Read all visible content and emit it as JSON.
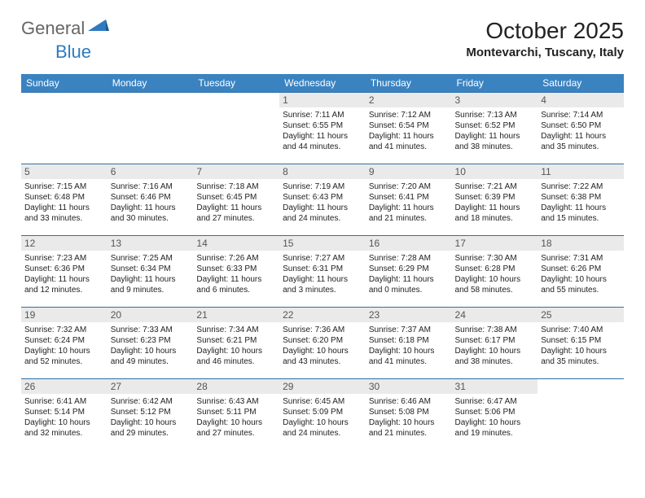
{
  "logo": {
    "part1": "General",
    "part2": "Blue"
  },
  "title": "October 2025",
  "location": "Montevarchi, Tuscany, Italy",
  "colors": {
    "header_bg": "#3b83c0",
    "header_text": "#ffffff",
    "row_border": "#2f6fa8",
    "daynum_bg": "#eaeaea",
    "daynum_text": "#555555",
    "body_text": "#222222",
    "logo_gray": "#666666",
    "logo_blue": "#2f7bbf",
    "page_bg": "#ffffff"
  },
  "typography": {
    "title_fontsize": 28,
    "location_fontsize": 15,
    "dow_fontsize": 12,
    "daynum_fontsize": 12,
    "body_fontsize": 10
  },
  "days_of_week": [
    "Sunday",
    "Monday",
    "Tuesday",
    "Wednesday",
    "Thursday",
    "Friday",
    "Saturday"
  ],
  "weeks": [
    [
      null,
      null,
      null,
      {
        "n": "1",
        "sr": "Sunrise: 7:11 AM",
        "ss": "Sunset: 6:55 PM",
        "d1": "Daylight: 11 hours",
        "d2": "and 44 minutes."
      },
      {
        "n": "2",
        "sr": "Sunrise: 7:12 AM",
        "ss": "Sunset: 6:54 PM",
        "d1": "Daylight: 11 hours",
        "d2": "and 41 minutes."
      },
      {
        "n": "3",
        "sr": "Sunrise: 7:13 AM",
        "ss": "Sunset: 6:52 PM",
        "d1": "Daylight: 11 hours",
        "d2": "and 38 minutes."
      },
      {
        "n": "4",
        "sr": "Sunrise: 7:14 AM",
        "ss": "Sunset: 6:50 PM",
        "d1": "Daylight: 11 hours",
        "d2": "and 35 minutes."
      }
    ],
    [
      {
        "n": "5",
        "sr": "Sunrise: 7:15 AM",
        "ss": "Sunset: 6:48 PM",
        "d1": "Daylight: 11 hours",
        "d2": "and 33 minutes."
      },
      {
        "n": "6",
        "sr": "Sunrise: 7:16 AM",
        "ss": "Sunset: 6:46 PM",
        "d1": "Daylight: 11 hours",
        "d2": "and 30 minutes."
      },
      {
        "n": "7",
        "sr": "Sunrise: 7:18 AM",
        "ss": "Sunset: 6:45 PM",
        "d1": "Daylight: 11 hours",
        "d2": "and 27 minutes."
      },
      {
        "n": "8",
        "sr": "Sunrise: 7:19 AM",
        "ss": "Sunset: 6:43 PM",
        "d1": "Daylight: 11 hours",
        "d2": "and 24 minutes."
      },
      {
        "n": "9",
        "sr": "Sunrise: 7:20 AM",
        "ss": "Sunset: 6:41 PM",
        "d1": "Daylight: 11 hours",
        "d2": "and 21 minutes."
      },
      {
        "n": "10",
        "sr": "Sunrise: 7:21 AM",
        "ss": "Sunset: 6:39 PM",
        "d1": "Daylight: 11 hours",
        "d2": "and 18 minutes."
      },
      {
        "n": "11",
        "sr": "Sunrise: 7:22 AM",
        "ss": "Sunset: 6:38 PM",
        "d1": "Daylight: 11 hours",
        "d2": "and 15 minutes."
      }
    ],
    [
      {
        "n": "12",
        "sr": "Sunrise: 7:23 AM",
        "ss": "Sunset: 6:36 PM",
        "d1": "Daylight: 11 hours",
        "d2": "and 12 minutes."
      },
      {
        "n": "13",
        "sr": "Sunrise: 7:25 AM",
        "ss": "Sunset: 6:34 PM",
        "d1": "Daylight: 11 hours",
        "d2": "and 9 minutes."
      },
      {
        "n": "14",
        "sr": "Sunrise: 7:26 AM",
        "ss": "Sunset: 6:33 PM",
        "d1": "Daylight: 11 hours",
        "d2": "and 6 minutes."
      },
      {
        "n": "15",
        "sr": "Sunrise: 7:27 AM",
        "ss": "Sunset: 6:31 PM",
        "d1": "Daylight: 11 hours",
        "d2": "and 3 minutes."
      },
      {
        "n": "16",
        "sr": "Sunrise: 7:28 AM",
        "ss": "Sunset: 6:29 PM",
        "d1": "Daylight: 11 hours",
        "d2": "and 0 minutes."
      },
      {
        "n": "17",
        "sr": "Sunrise: 7:30 AM",
        "ss": "Sunset: 6:28 PM",
        "d1": "Daylight: 10 hours",
        "d2": "and 58 minutes."
      },
      {
        "n": "18",
        "sr": "Sunrise: 7:31 AM",
        "ss": "Sunset: 6:26 PM",
        "d1": "Daylight: 10 hours",
        "d2": "and 55 minutes."
      }
    ],
    [
      {
        "n": "19",
        "sr": "Sunrise: 7:32 AM",
        "ss": "Sunset: 6:24 PM",
        "d1": "Daylight: 10 hours",
        "d2": "and 52 minutes."
      },
      {
        "n": "20",
        "sr": "Sunrise: 7:33 AM",
        "ss": "Sunset: 6:23 PM",
        "d1": "Daylight: 10 hours",
        "d2": "and 49 minutes."
      },
      {
        "n": "21",
        "sr": "Sunrise: 7:34 AM",
        "ss": "Sunset: 6:21 PM",
        "d1": "Daylight: 10 hours",
        "d2": "and 46 minutes."
      },
      {
        "n": "22",
        "sr": "Sunrise: 7:36 AM",
        "ss": "Sunset: 6:20 PM",
        "d1": "Daylight: 10 hours",
        "d2": "and 43 minutes."
      },
      {
        "n": "23",
        "sr": "Sunrise: 7:37 AM",
        "ss": "Sunset: 6:18 PM",
        "d1": "Daylight: 10 hours",
        "d2": "and 41 minutes."
      },
      {
        "n": "24",
        "sr": "Sunrise: 7:38 AM",
        "ss": "Sunset: 6:17 PM",
        "d1": "Daylight: 10 hours",
        "d2": "and 38 minutes."
      },
      {
        "n": "25",
        "sr": "Sunrise: 7:40 AM",
        "ss": "Sunset: 6:15 PM",
        "d1": "Daylight: 10 hours",
        "d2": "and 35 minutes."
      }
    ],
    [
      {
        "n": "26",
        "sr": "Sunrise: 6:41 AM",
        "ss": "Sunset: 5:14 PM",
        "d1": "Daylight: 10 hours",
        "d2": "and 32 minutes."
      },
      {
        "n": "27",
        "sr": "Sunrise: 6:42 AM",
        "ss": "Sunset: 5:12 PM",
        "d1": "Daylight: 10 hours",
        "d2": "and 29 minutes."
      },
      {
        "n": "28",
        "sr": "Sunrise: 6:43 AM",
        "ss": "Sunset: 5:11 PM",
        "d1": "Daylight: 10 hours",
        "d2": "and 27 minutes."
      },
      {
        "n": "29",
        "sr": "Sunrise: 6:45 AM",
        "ss": "Sunset: 5:09 PM",
        "d1": "Daylight: 10 hours",
        "d2": "and 24 minutes."
      },
      {
        "n": "30",
        "sr": "Sunrise: 6:46 AM",
        "ss": "Sunset: 5:08 PM",
        "d1": "Daylight: 10 hours",
        "d2": "and 21 minutes."
      },
      {
        "n": "31",
        "sr": "Sunrise: 6:47 AM",
        "ss": "Sunset: 5:06 PM",
        "d1": "Daylight: 10 hours",
        "d2": "and 19 minutes."
      },
      null
    ]
  ]
}
